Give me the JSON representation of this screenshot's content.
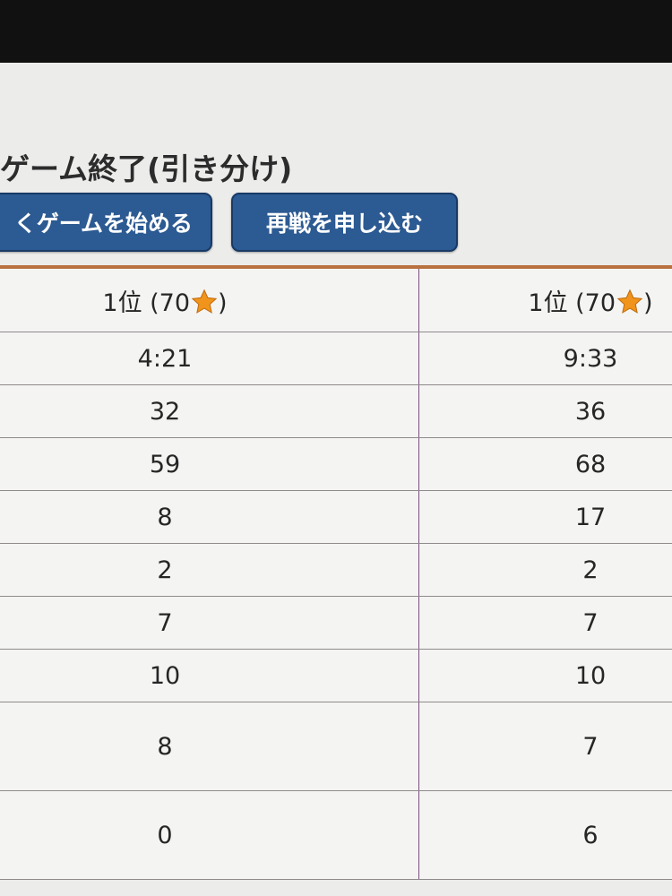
{
  "game": {
    "title": "ゲーム終了(引き分け)",
    "buttons": {
      "new_game": "くゲームを始める",
      "rematch": "再戦を申し込む"
    }
  },
  "colors": {
    "button_bg": "#2c5a92",
    "divider": "#b8703e",
    "star": "#f0941c"
  },
  "table": {
    "header": [
      {
        "rank": "1位 (70",
        "icon": "star-icon",
        "close": ")"
      },
      {
        "rank": "1位 (70",
        "icon": "star-icon",
        "close": ")"
      }
    ],
    "rows": [
      [
        "4:21",
        "9:33"
      ],
      [
        "32",
        "36"
      ],
      [
        "59",
        "68"
      ],
      [
        "8",
        "17"
      ],
      [
        "2",
        "2"
      ],
      [
        "7",
        "7"
      ],
      [
        "10",
        "10"
      ],
      [
        "8",
        "7"
      ],
      [
        "0",
        "6"
      ]
    ]
  }
}
